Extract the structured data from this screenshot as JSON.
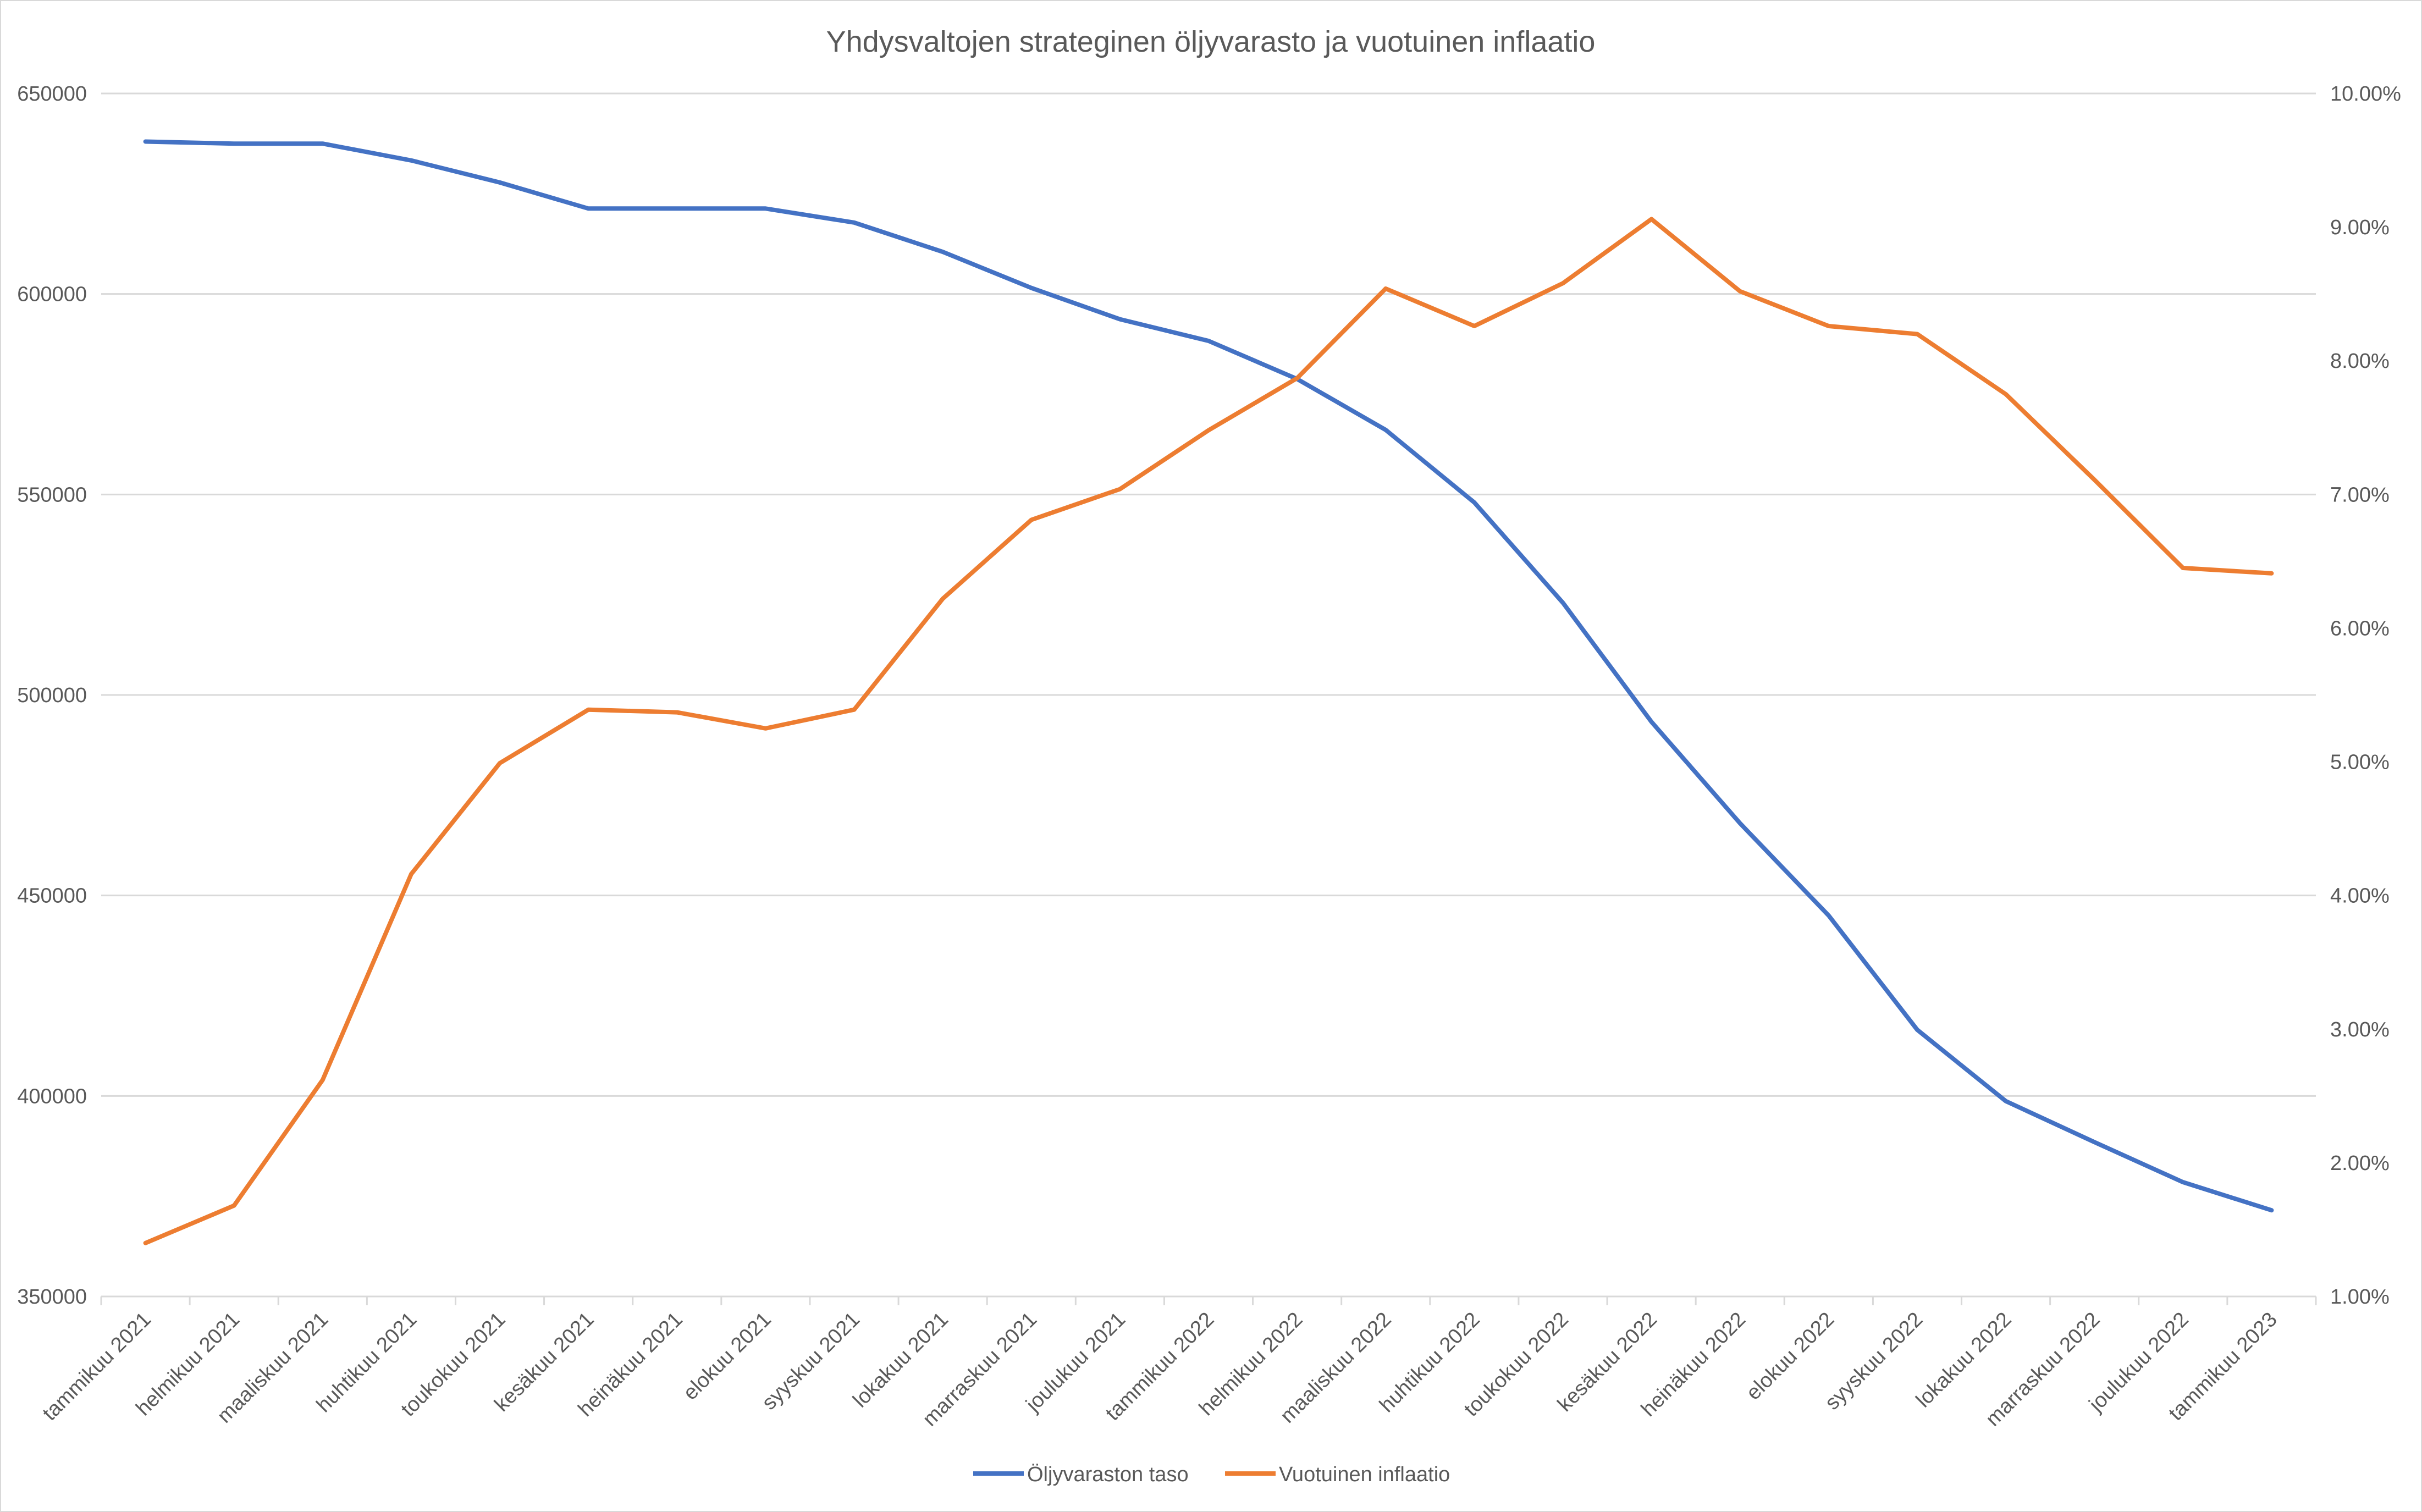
{
  "chart_data": {
    "type": "line",
    "title": "Yhdysvaltojen strateginen öljyvarasto ja vuotuinen inflaatio",
    "categories": [
      "tammikuu 2021",
      "helmikuu 2021",
      "maaliskuu 2021",
      "huhtikuu 2021",
      "toukokuu 2021",
      "kesäkuu 2021",
      "heinäkuu 2021",
      "elokuu 2021",
      "syyskuu 2021",
      "lokakuu 2021",
      "marraskuu 2021",
      "joulukuu 2021",
      "tammikuu 2022",
      "helmikuu 2022",
      "maaliskuu 2022",
      "huhtikuu 2022",
      "toukokuu 2022",
      "kesäkuu 2022",
      "heinäkuu 2022",
      "elokuu 2022",
      "syyskuu 2022",
      "lokakuu 2022",
      "marraskuu 2022",
      "joulukuu 2022",
      "tammikuu 2023"
    ],
    "series": [
      {
        "name": "Öljyvaraston taso",
        "axis": "left",
        "color": "#4472c4",
        "values": [
          638000,
          637500,
          637500,
          633300,
          627800,
          621300,
          621300,
          621300,
          617800,
          610500,
          601500,
          593700,
          588300,
          578800,
          566100,
          548000,
          523000,
          493300,
          468000,
          445000,
          416500,
          398700,
          388500,
          378500,
          371500
        ]
      },
      {
        "name": "Vuotuinen inflaatio",
        "axis": "right",
        "color": "#ed7d31",
        "values": [
          1.4,
          1.68,
          2.62,
          4.16,
          4.99,
          5.39,
          5.37,
          5.25,
          5.39,
          6.22,
          6.81,
          7.04,
          7.48,
          7.87,
          8.54,
          8.26,
          8.58,
          9.06,
          8.52,
          8.26,
          8.2,
          7.75,
          7.11,
          6.45,
          6.41
        ]
      }
    ],
    "y_left": {
      "min": 350000,
      "max": 650000,
      "ticks": [
        "350000",
        "400000",
        "450000",
        "500000",
        "550000",
        "600000",
        "650000"
      ]
    },
    "y_right": {
      "min": 1,
      "max": 10,
      "ticks": [
        "1.00%",
        "2.00%",
        "3.00%",
        "4.00%",
        "5.00%",
        "6.00%",
        "7.00%",
        "8.00%",
        "9.00%",
        "10.00%"
      ]
    },
    "grid": true,
    "legend_position": "bottom"
  }
}
